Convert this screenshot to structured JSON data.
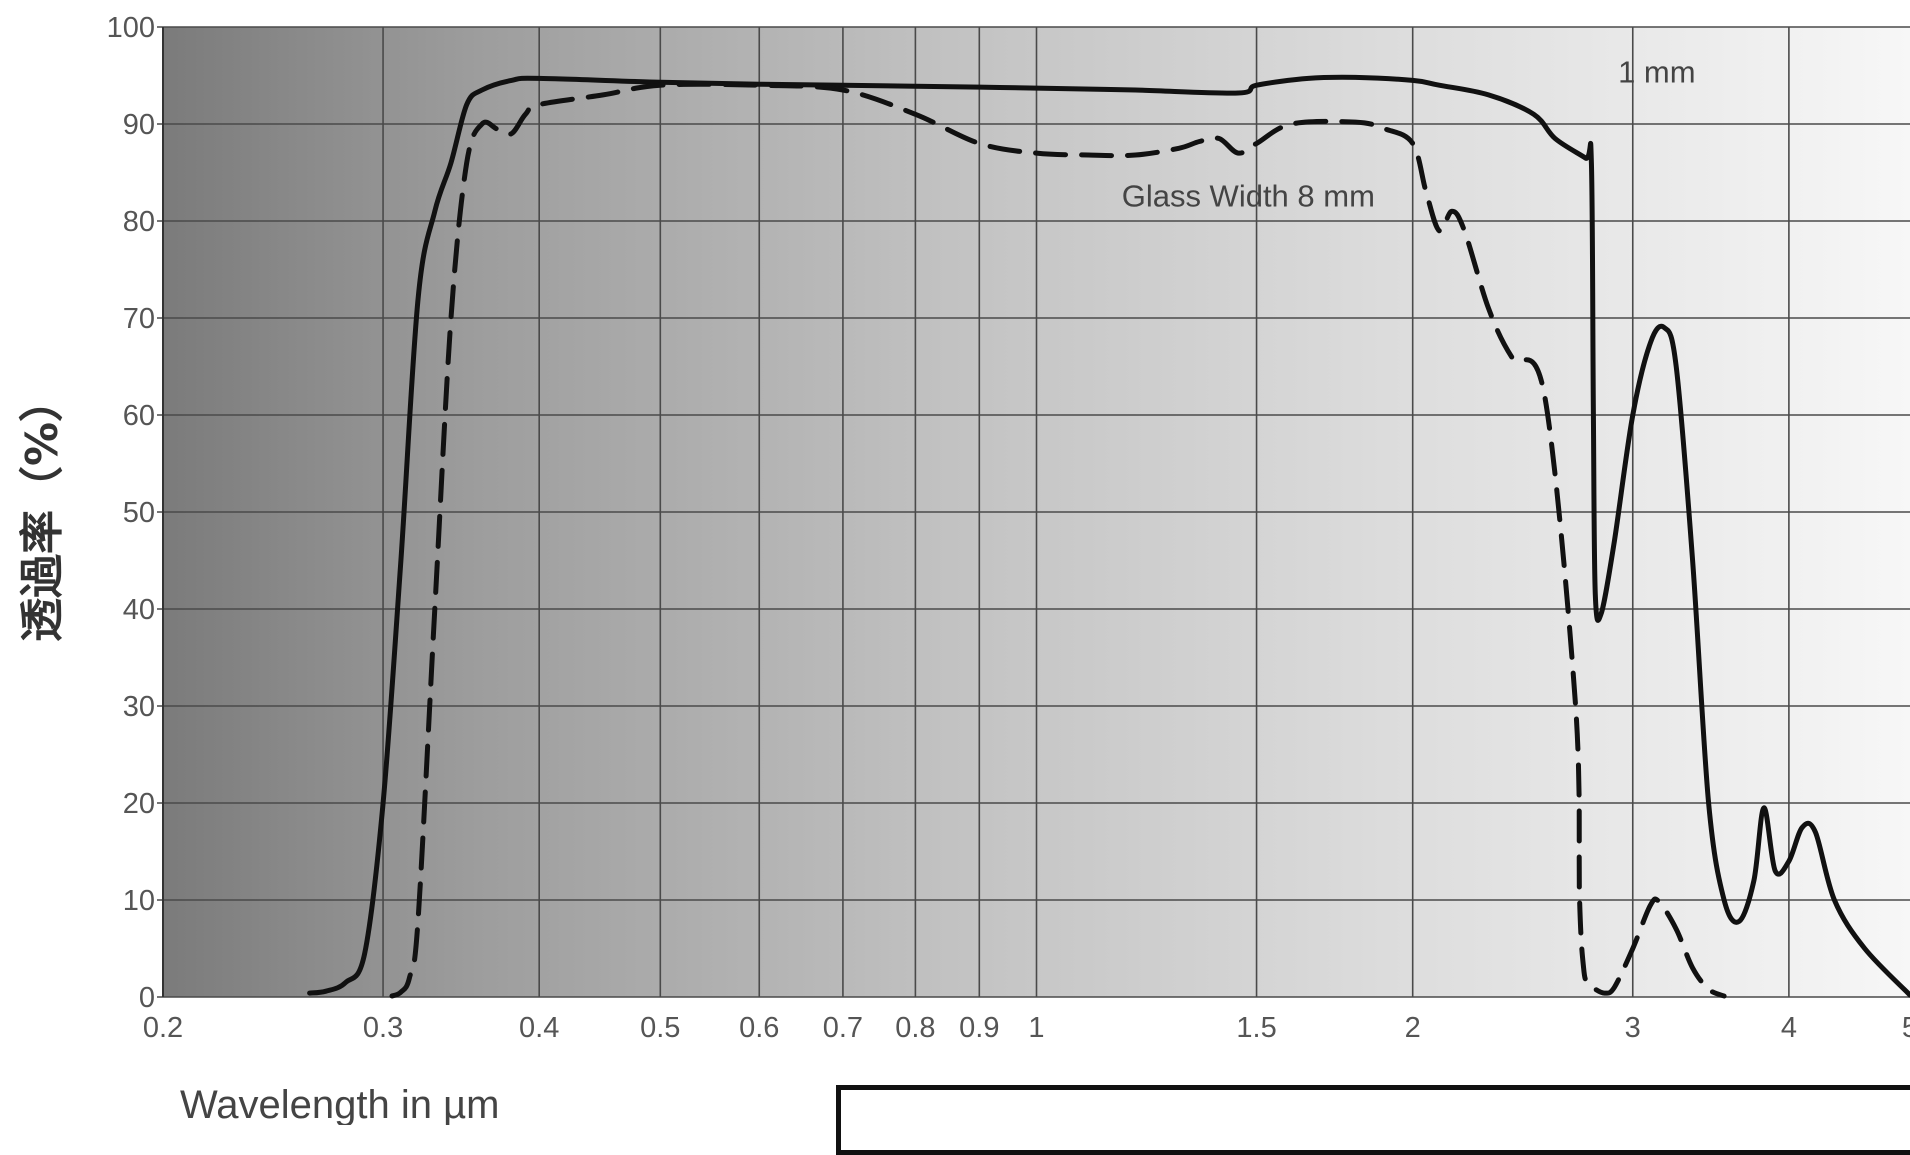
{
  "chart_data": {
    "type": "line",
    "title": "",
    "xlabel": "Wavelength in µm",
    "ylabel": "透過率（%）",
    "xscale": "log",
    "xlim": [
      0.2,
      5
    ],
    "ylim": [
      0,
      100
    ],
    "x_ticks": [
      0.2,
      0.3,
      0.4,
      0.5,
      0.6,
      0.7,
      0.8,
      0.9,
      1,
      1.5,
      2,
      3,
      4,
      5
    ],
    "x_tick_labels": [
      "0.2",
      "0.3",
      "0.4",
      "0.5",
      "0.6",
      "0.7",
      "0.8",
      "0.9",
      "1",
      "1.5",
      "2",
      "3",
      "4",
      "5"
    ],
    "y_ticks": [
      0,
      10,
      20,
      30,
      40,
      50,
      60,
      70,
      80,
      90,
      100
    ],
    "y_tick_labels": [
      "0",
      "10",
      "20",
      "30",
      "40",
      "50",
      "60",
      "70",
      "80",
      "90",
      "100"
    ],
    "grid": true,
    "background": "horizontal gradient from #7e7e7e (left) to #f6f6f6 (right)",
    "series": [
      {
        "name": "1 mm",
        "style": "solid",
        "color": "#111111",
        "x": [
          0.262,
          0.27,
          0.28,
          0.29,
          0.3,
          0.31,
          0.32,
          0.33,
          0.34,
          0.35,
          0.36,
          0.38,
          0.4,
          0.5,
          0.6,
          0.7,
          0.8,
          0.9,
          1.0,
          1.2,
          1.45,
          1.5,
          1.65,
          1.8,
          2.0,
          2.1,
          2.3,
          2.5,
          2.6,
          2.75,
          2.78,
          2.79,
          2.8,
          2.83,
          2.9,
          3.0,
          3.1,
          3.18,
          3.25,
          3.35,
          3.45,
          3.55,
          3.65,
          3.75,
          3.82,
          3.9,
          4.0,
          4.1,
          4.2,
          4.35,
          4.6,
          5.0
        ],
        "y": [
          0.4,
          0.6,
          1.5,
          4.5,
          20,
          45,
          72,
          81,
          86,
          92,
          93.5,
          94.5,
          94.7,
          94.3,
          94.1,
          94.0,
          93.9,
          93.8,
          93.7,
          93.5,
          93.2,
          94.0,
          94.7,
          94.8,
          94.5,
          94.0,
          93.0,
          91.0,
          88.5,
          86.5,
          86.0,
          60.0,
          41.5,
          39.5,
          47.0,
          60.0,
          67.5,
          69.0,
          65.0,
          45.0,
          20.0,
          10.0,
          7.8,
          12.0,
          19.5,
          13.0,
          14.0,
          17.5,
          17.0,
          10.0,
          5.0,
          0.2
        ]
      },
      {
        "name": "Glass Width 8 mm",
        "style": "dashed",
        "color": "#111111",
        "x": [
          0.305,
          0.31,
          0.315,
          0.32,
          0.33,
          0.34,
          0.35,
          0.36,
          0.37,
          0.38,
          0.39,
          0.4,
          0.45,
          0.5,
          0.6,
          0.7,
          0.8,
          0.9,
          1.0,
          1.1,
          1.2,
          1.3,
          1.35,
          1.4,
          1.45,
          1.5,
          1.6,
          1.8,
          1.9,
          2.0,
          2.05,
          2.1,
          2.15,
          2.2,
          2.3,
          2.4,
          2.55,
          2.7,
          2.72,
          2.74,
          2.76,
          2.8,
          2.85,
          2.9,
          3.0,
          3.1,
          3.15,
          3.25,
          3.35,
          3.45,
          3.55
        ],
        "y": [
          0.1,
          0.5,
          2.0,
          8.0,
          40.0,
          70.0,
          86.0,
          90.0,
          89.5,
          89.0,
          91.0,
          92.0,
          93.0,
          94.0,
          94.0,
          93.5,
          91.0,
          88.0,
          87.0,
          86.8,
          86.8,
          87.5,
          88.2,
          88.5,
          87.0,
          88.0,
          90.0,
          90.2,
          89.5,
          88.0,
          83.0,
          79.0,
          81.0,
          79.0,
          71.0,
          66.0,
          62.0,
          30.0,
          10.0,
          3.0,
          1.5,
          0.8,
          0.4,
          1.0,
          5.0,
          9.5,
          9.8,
          7.0,
          3.0,
          0.8,
          0.1
        ]
      }
    ],
    "annotations": [
      {
        "text": "1 mm",
        "x": 2.92,
        "y": 94.3
      },
      {
        "text": "Glass Width 8 mm",
        "x": 1.17,
        "y": 81.5
      }
    ]
  }
}
